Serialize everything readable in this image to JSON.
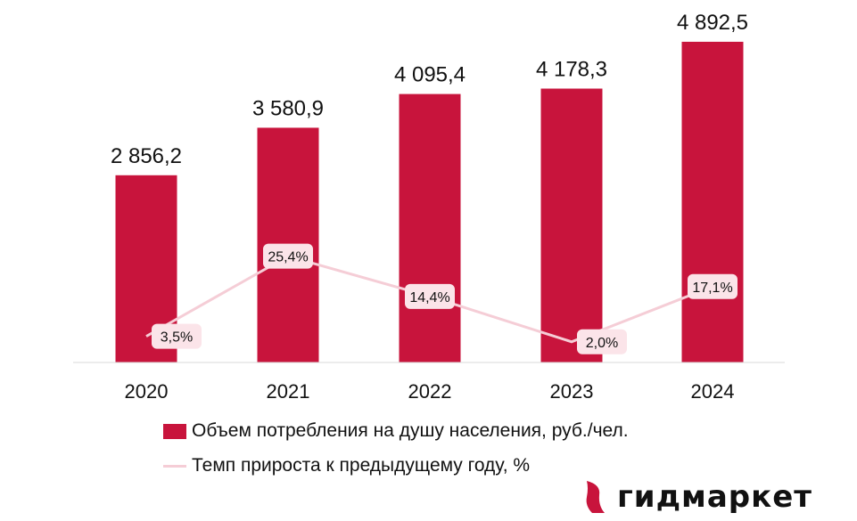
{
  "chart_data": {
    "type": "bar",
    "categories": [
      "2020",
      "2021",
      "2022",
      "2023",
      "2024"
    ],
    "series": [
      {
        "name": "Объем потребления на душу населения, руб./чел.",
        "type": "bar",
        "values": [
          2856.2,
          3580.9,
          4095.4,
          4178.3,
          4892.5
        ],
        "labels": [
          "2 856,2",
          "3 580,9",
          "4 095,4",
          "4 178,3",
          "4 892,5"
        ]
      },
      {
        "name": "Темп прироста к предыдущему году, %",
        "type": "line",
        "axis": "secondary",
        "values": [
          3.5,
          25.4,
          14.4,
          2.0,
          17.1
        ],
        "labels": [
          "3,5%",
          "25,4%",
          "14,4%",
          "2,0%",
          "17,1%"
        ]
      }
    ],
    "ylim": [
      0,
      5000
    ],
    "y2lim": [
      0,
      28
    ],
    "grid": false,
    "legend": "bottom",
    "colors": {
      "bar": "#C8143C",
      "line": "#F5CDD6",
      "label_box": "#FBE4E9"
    }
  },
  "logo": {
    "text": "гидмаркет",
    "color": "#C8143C"
  }
}
